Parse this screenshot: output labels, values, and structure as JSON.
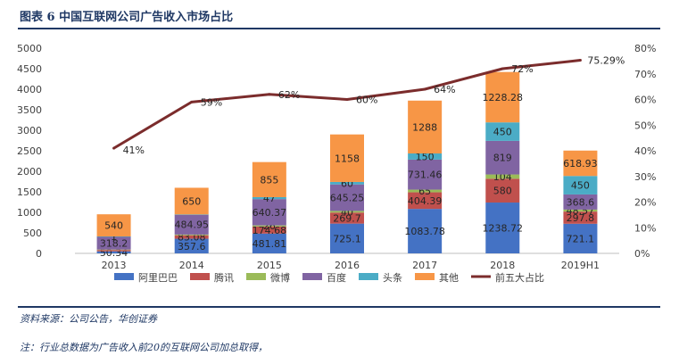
{
  "title": "图表 6 中国互联网公司广告收入市场占比",
  "source": "资料来源：公司公告，华创证券",
  "note": "注：行业总数据为广告收入前20的互联网公司加总取得，",
  "colors": {
    "text": "#1f3864",
    "axis_text": "#404040",
    "grid": "#d9d9d9"
  },
  "chart_data": {
    "type": "bar",
    "stacked": true,
    "categories": [
      "2013",
      "2014",
      "2015",
      "2016",
      "2017",
      "2018",
      "2019H1"
    ],
    "series": [
      {
        "name": "阿里巴巴",
        "color": "#4472c4",
        "values": [
          50.34,
          357.6,
          481.81,
          725.1,
          1083.78,
          1238.72,
          721.1
        ],
        "labels": [
          "50.34",
          "357.6",
          "481.81",
          "725.1",
          "1083.78",
          "1238.72",
          "721.1"
        ]
      },
      {
        "name": "腾讯",
        "color": "#c0504d",
        "values": [
          33,
          83.08,
          174.68,
          269.7,
          404.39,
          580,
          297.8
        ],
        "labels": [
          "",
          "83.08",
          "174.68",
          "269.7",
          "404.39",
          "580",
          "297.8"
        ]
      },
      {
        "name": "微博",
        "color": "#9bbb59",
        "values": [
          10,
          18,
          26,
          40,
          65,
          104,
          48.57
        ],
        "labels": [
          "",
          "",
          "26",
          "40",
          "65",
          "104",
          "48.57"
        ]
      },
      {
        "name": "百度",
        "color": "#8064a2",
        "values": [
          318.2,
          484.95,
          640.37,
          645.25,
          731.46,
          819,
          368.6
        ],
        "labels": [
          "318.2",
          "484.95",
          "640.37",
          "645.25",
          "731.46",
          "819",
          "368.6"
        ]
      },
      {
        "name": "头条",
        "color": "#4bacc6",
        "values": [
          1,
          5,
          47,
          60,
          150,
          450,
          450
        ],
        "labels": [
          "1",
          "",
          "47",
          "60",
          "150",
          "450",
          "450"
        ]
      },
      {
        "name": "其他",
        "color": "#f79646",
        "values": [
          540,
          650,
          855,
          1158,
          1288,
          1228.28,
          618.93
        ],
        "labels": [
          "540",
          "650",
          "855",
          "1158",
          "1288",
          "1228.28",
          "618.93"
        ]
      }
    ],
    "line": {
      "name": "前五大占比",
      "color": "#7b2c2c",
      "axis": "right",
      "values": [
        41,
        59,
        62,
        60,
        64,
        72,
        75.29
      ],
      "labels": [
        "41%",
        "59%",
        "62%",
        "60%",
        "64%",
        "72%",
        "75.29%"
      ]
    },
    "y_left": {
      "min": 0,
      "max": 5000,
      "ticks": [
        "0",
        "500",
        "1000",
        "1500",
        "2000",
        "2500",
        "3000",
        "3500",
        "4000",
        "4500",
        "5000"
      ]
    },
    "y_right": {
      "min": 0,
      "max": 80,
      "ticks": [
        "0%",
        "10%",
        "20%",
        "30%",
        "40%",
        "50%",
        "60%",
        "70%",
        "80%"
      ]
    },
    "grid": false,
    "legend": "bottom"
  }
}
